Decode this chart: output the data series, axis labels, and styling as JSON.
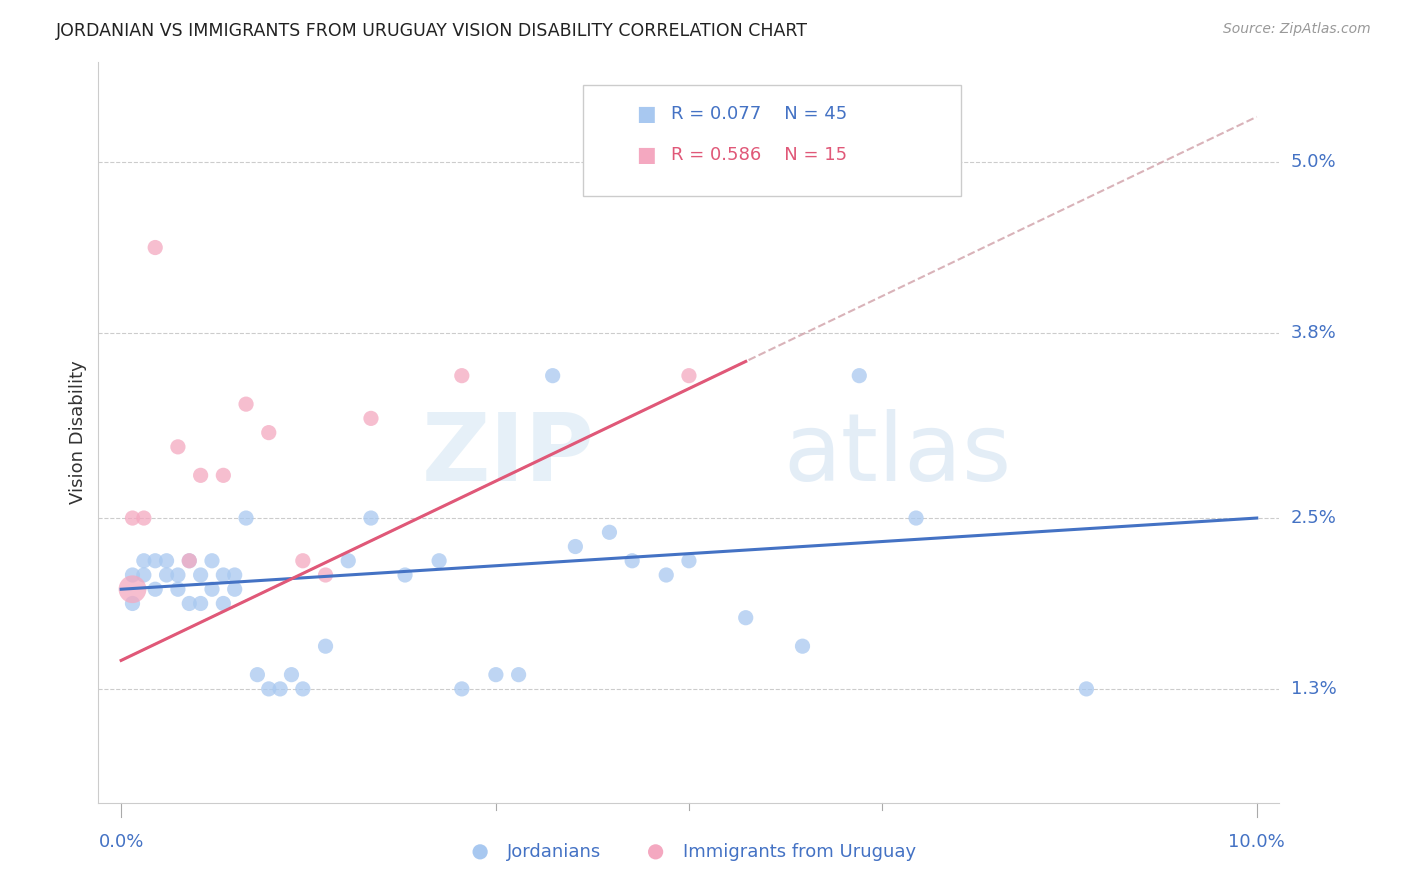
{
  "title": "JORDANIAN VS IMMIGRANTS FROM URUGUAY VISION DISABILITY CORRELATION CHART",
  "source": "Source: ZipAtlas.com",
  "ylabel": "Vision Disability",
  "xlim": [
    0.0,
    0.1
  ],
  "ylim": [
    0.005,
    0.055
  ],
  "yticks": [
    0.013,
    0.025,
    0.038,
    0.05
  ],
  "ytick_labels": [
    "1.3%",
    "2.5%",
    "3.8%",
    "5.0%"
  ],
  "color_blue": "#A8C8F0",
  "color_pink": "#F4A8C0",
  "color_line_blue": "#4472C4",
  "color_line_pink": "#E05878",
  "color_line_dashed": "#D0A0A8",
  "watermark_zip": "ZIP",
  "watermark_atlas": "atlas",
  "jordanians_x": [
    0.001,
    0.001,
    0.002,
    0.002,
    0.003,
    0.003,
    0.004,
    0.004,
    0.005,
    0.005,
    0.006,
    0.006,
    0.007,
    0.007,
    0.008,
    0.008,
    0.009,
    0.009,
    0.01,
    0.01,
    0.011,
    0.012,
    0.013,
    0.014,
    0.015,
    0.016,
    0.018,
    0.02,
    0.022,
    0.025,
    0.028,
    0.03,
    0.033,
    0.035,
    0.038,
    0.04,
    0.043,
    0.045,
    0.048,
    0.05,
    0.055,
    0.06,
    0.065,
    0.07,
    0.085
  ],
  "jordanians_y": [
    0.021,
    0.019,
    0.022,
    0.021,
    0.022,
    0.02,
    0.021,
    0.022,
    0.021,
    0.02,
    0.022,
    0.019,
    0.021,
    0.019,
    0.02,
    0.022,
    0.021,
    0.019,
    0.021,
    0.02,
    0.025,
    0.014,
    0.013,
    0.013,
    0.014,
    0.013,
    0.016,
    0.022,
    0.025,
    0.021,
    0.022,
    0.013,
    0.014,
    0.014,
    0.035,
    0.023,
    0.024,
    0.022,
    0.021,
    0.022,
    0.018,
    0.016,
    0.035,
    0.025,
    0.013
  ],
  "jordanians_size": [
    120,
    120,
    120,
    120,
    120,
    120,
    120,
    120,
    120,
    120,
    120,
    120,
    120,
    120,
    120,
    120,
    120,
    120,
    120,
    120,
    120,
    120,
    120,
    120,
    120,
    120,
    120,
    120,
    120,
    120,
    120,
    120,
    120,
    120,
    120,
    120,
    120,
    120,
    120,
    120,
    120,
    120,
    120,
    120,
    120
  ],
  "uruguay_x": [
    0.001,
    0.001,
    0.002,
    0.003,
    0.005,
    0.006,
    0.007,
    0.009,
    0.011,
    0.013,
    0.016,
    0.018,
    0.022,
    0.03,
    0.05
  ],
  "uruguay_y": [
    0.025,
    0.02,
    0.025,
    0.044,
    0.03,
    0.022,
    0.028,
    0.028,
    0.033,
    0.031,
    0.022,
    0.021,
    0.032,
    0.035,
    0.035
  ],
  "uruguay_size": [
    120,
    400,
    120,
    120,
    120,
    120,
    120,
    120,
    120,
    120,
    120,
    120,
    120,
    120,
    120
  ],
  "trend_blue_x0": 0.0,
  "trend_blue_y0": 0.02,
  "trend_blue_x1": 0.1,
  "trend_blue_y1": 0.025,
  "trend_pink_x0": 0.0,
  "trend_pink_y0": 0.015,
  "trend_pink_x1": 0.055,
  "trend_pink_y1": 0.036,
  "trend_dashed_x0": 0.0,
  "trend_dashed_x1": 0.1
}
